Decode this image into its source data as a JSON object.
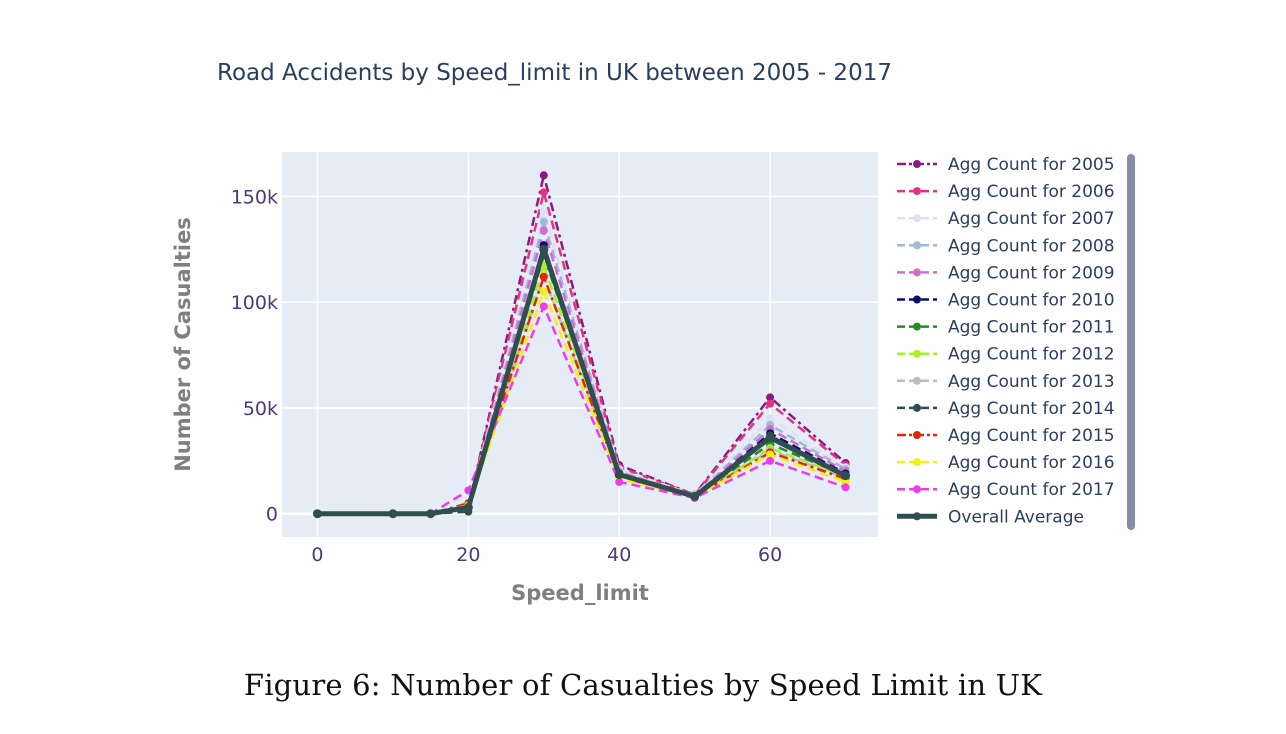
{
  "caption": "Figure 6: Number of Casualties by Speed Limit in UK",
  "chart_data": {
    "type": "line",
    "title": "Road Accidents by Speed_limit in UK between 2005 - 2017",
    "xlabel": "Speed_limit",
    "ylabel": "Number of Casualties",
    "xlim": [
      -4.7,
      74.3
    ],
    "ylim": [
      -11000,
      171000
    ],
    "x_ticks": [
      0,
      20,
      40,
      60
    ],
    "x_tick_labels": [
      "0",
      "20",
      "40",
      "60"
    ],
    "y_ticks": [
      0,
      50000,
      100000,
      150000
    ],
    "y_tick_labels": [
      "0",
      "50k",
      "100k",
      "150k"
    ],
    "grid": true,
    "legend_position": "right",
    "x": [
      0,
      10,
      15,
      20,
      30,
      40,
      50,
      60,
      70
    ],
    "series": [
      {
        "name": "Agg Count for 2005",
        "color": "#8b1a84",
        "dash": "dashdot",
        "values": [
          0,
          0,
          0,
          3000,
          160000,
          23000,
          9000,
          55000,
          24000
        ]
      },
      {
        "name": "Agg Count for 2006",
        "color": "#e8327f",
        "dash": "dash",
        "values": [
          0,
          0,
          0,
          3500,
          152000,
          22000,
          9000,
          52000,
          23000
        ]
      },
      {
        "name": "Agg Count for 2007",
        "color": "#dde1f5",
        "dash": "dash",
        "values": [
          0,
          0,
          0,
          3000,
          143000,
          21000,
          8800,
          45000,
          22000
        ]
      },
      {
        "name": "Agg Count for 2008",
        "color": "#9fb9d6",
        "dash": "dash",
        "values": [
          0,
          0,
          0,
          3000,
          138000,
          20000,
          8500,
          42000,
          21000
        ]
      },
      {
        "name": "Agg Count for 2009",
        "color": "#d46cd0",
        "dash": "dash",
        "values": [
          0,
          0,
          0,
          3000,
          134000,
          19500,
          8200,
          40000,
          20000
        ]
      },
      {
        "name": "Agg Count for 2010",
        "color": "#0d0d70",
        "dash": "dash",
        "values": [
          0,
          0,
          0,
          2800,
          127000,
          19000,
          8000,
          38000,
          19000
        ]
      },
      {
        "name": "Agg Count for 2011",
        "color": "#228b22",
        "dash": "dash",
        "values": [
          0,
          0,
          0,
          3000,
          122000,
          18500,
          8000,
          33000,
          18000
        ]
      },
      {
        "name": "Agg Count for 2012",
        "color": "#a5f22a",
        "dash": "dash",
        "values": [
          0,
          0,
          0,
          3000,
          117000,
          18000,
          7800,
          31000,
          17500
        ]
      },
      {
        "name": "Agg Count for 2013",
        "color": "#bdbdbd",
        "dash": "dash",
        "values": [
          0,
          0,
          0,
          3000,
          112000,
          17500,
          7800,
          30000,
          17000
        ]
      },
      {
        "name": "Agg Count for 2014",
        "color": "#2e4e4e",
        "dash": "dash",
        "values": [
          0,
          0,
          0,
          1000,
          124000,
          18000,
          8000,
          37000,
          18000
        ]
      },
      {
        "name": "Agg Count for 2015",
        "color": "#e3260b",
        "dash": "dashdot",
        "values": [
          0,
          0,
          0,
          5000,
          112000,
          17500,
          8000,
          29000,
          16500
        ]
      },
      {
        "name": "Agg Count for 2016",
        "color": "#f2f20c",
        "dash": "dash",
        "values": [
          0,
          0,
          0,
          4000,
          105000,
          16500,
          7800,
          28000,
          15000
        ]
      },
      {
        "name": "Agg Count for 2017",
        "color": "#ee3bea",
        "dash": "dash",
        "values": [
          0,
          0,
          0,
          11000,
          98000,
          15000,
          7500,
          25000,
          12500
        ]
      },
      {
        "name": "Overall Average",
        "color": "#2f4f4f",
        "dash": "solid",
        "width": 5,
        "values": [
          0,
          0,
          0,
          3000,
          125000,
          18500,
          8200,
          36000,
          18000
        ]
      }
    ]
  }
}
